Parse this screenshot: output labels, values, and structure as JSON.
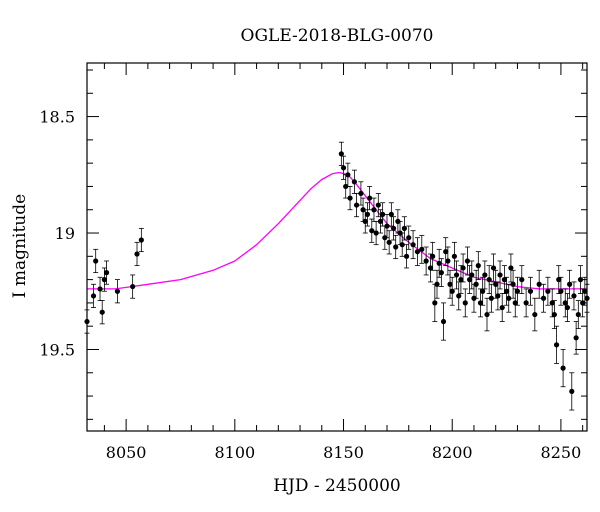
{
  "chart_data": {
    "type": "scatter",
    "title": "OGLE-2018-BLG-0070",
    "xlabel": "HJD - 2450000",
    "ylabel": "I magnitude",
    "xlim": [
      8032,
      8262
    ],
    "ylim": [
      19.85,
      18.27
    ],
    "y_inverted": true,
    "x_ticks": [
      8050,
      8100,
      8150,
      8200,
      8250
    ],
    "x_tick_labels": [
      "8050",
      "8100",
      "8150",
      "8200",
      "8250"
    ],
    "y_ticks": [
      18.5,
      19,
      19.5
    ],
    "y_tick_labels": [
      "18.5",
      "19",
      "19.5"
    ],
    "grid": false,
    "colors": {
      "points": "#000000",
      "model": "#ff00ff",
      "axes": "#000000"
    },
    "model": {
      "name": "",
      "x": [
        8032,
        8045,
        8060,
        8075,
        8090,
        8100,
        8110,
        8120,
        8130,
        8135,
        8140,
        8145,
        8148,
        8152,
        8155,
        8160,
        8165,
        8170,
        8180,
        8190,
        8200,
        8210,
        8220,
        8230,
        8240,
        8250,
        8262
      ],
      "y": [
        19.24,
        19.24,
        19.22,
        19.2,
        19.16,
        19.12,
        19.05,
        18.96,
        18.86,
        18.81,
        18.77,
        18.745,
        18.74,
        18.75,
        18.78,
        18.84,
        18.9,
        18.96,
        19.04,
        19.11,
        19.15,
        19.19,
        19.21,
        19.23,
        19.24,
        19.24,
        19.24
      ]
    },
    "series": [
      {
        "name": "",
        "x": [
          8032,
          8035,
          8036,
          8038,
          8039,
          8040,
          8041,
          8046,
          8053,
          8055,
          8057,
          8149,
          8150,
          8151,
          8152,
          8153,
          8155,
          8156,
          8158,
          8159,
          8160,
          8161,
          8162,
          8163,
          8164,
          8165,
          8166,
          8167,
          8168,
          8169,
          8170,
          8171,
          8172,
          8173,
          8174,
          8175,
          8176,
          8177,
          8178,
          8179,
          8180,
          8182,
          8184,
          8186,
          8188,
          8190,
          8191,
          8192,
          8193,
          8194,
          8195,
          8196,
          8197,
          8198,
          8199,
          8200,
          8201,
          8202,
          8203,
          8204,
          8205,
          8206,
          8207,
          8208,
          8209,
          8210,
          8211,
          8212,
          8213,
          8214,
          8215,
          8216,
          8217,
          8218,
          8219,
          8220,
          8221,
          8222,
          8223,
          8224,
          8225,
          8226,
          8227,
          8228,
          8229,
          8230,
          8232,
          8234,
          8236,
          8238,
          8240,
          8242,
          8244,
          8246,
          8247,
          8248,
          8249,
          8250,
          8251,
          8252,
          8253,
          8254,
          8255,
          8256,
          8257,
          8258,
          8259,
          8260,
          8261,
          8262
        ],
        "y": [
          19.38,
          19.27,
          19.12,
          19.24,
          19.34,
          19.2,
          19.17,
          19.25,
          19.23,
          19.09,
          19.03,
          18.66,
          18.72,
          18.8,
          18.75,
          18.85,
          18.78,
          18.88,
          18.83,
          18.9,
          18.95,
          18.92,
          18.85,
          18.99,
          18.9,
          19.0,
          18.88,
          18.95,
          18.92,
          19.02,
          18.97,
          19.04,
          18.92,
          18.98,
          19.06,
          18.95,
          19.0,
          19.05,
          18.98,
          19.1,
          19.02,
          19.05,
          19.08,
          19.07,
          19.12,
          19.15,
          19.1,
          19.3,
          19.22,
          19.13,
          19.17,
          19.38,
          19.08,
          19.12,
          19.22,
          19.25,
          19.1,
          19.18,
          19.27,
          19.2,
          19.15,
          19.3,
          19.12,
          19.2,
          19.18,
          19.28,
          19.22,
          19.14,
          19.3,
          19.25,
          19.18,
          19.35,
          19.2,
          19.28,
          19.15,
          19.22,
          19.27,
          19.18,
          19.32,
          19.2,
          19.25,
          19.28,
          19.15,
          19.22,
          19.3,
          19.25,
          19.2,
          19.3,
          19.25,
          19.35,
          19.22,
          19.28,
          19.25,
          19.3,
          19.35,
          19.48,
          19.2,
          19.25,
          19.58,
          19.3,
          19.32,
          19.22,
          19.68,
          19.27,
          19.45,
          19.35,
          19.2,
          19.3,
          19.25,
          19.28
        ],
        "yerr": [
          0.05,
          0.05,
          0.05,
          0.05,
          0.05,
          0.05,
          0.05,
          0.05,
          0.05,
          0.05,
          0.05,
          0.05,
          0.05,
          0.05,
          0.05,
          0.05,
          0.05,
          0.05,
          0.05,
          0.05,
          0.05,
          0.05,
          0.05,
          0.05,
          0.05,
          0.05,
          0.05,
          0.05,
          0.05,
          0.05,
          0.05,
          0.05,
          0.05,
          0.05,
          0.05,
          0.05,
          0.05,
          0.05,
          0.05,
          0.05,
          0.05,
          0.06,
          0.06,
          0.06,
          0.06,
          0.06,
          0.06,
          0.08,
          0.06,
          0.06,
          0.06,
          0.08,
          0.06,
          0.06,
          0.06,
          0.06,
          0.06,
          0.06,
          0.06,
          0.06,
          0.06,
          0.06,
          0.06,
          0.06,
          0.06,
          0.06,
          0.06,
          0.06,
          0.06,
          0.06,
          0.06,
          0.07,
          0.06,
          0.06,
          0.06,
          0.06,
          0.06,
          0.06,
          0.06,
          0.06,
          0.06,
          0.06,
          0.06,
          0.06,
          0.06,
          0.06,
          0.06,
          0.06,
          0.06,
          0.07,
          0.06,
          0.06,
          0.06,
          0.06,
          0.06,
          0.08,
          0.06,
          0.06,
          0.08,
          0.06,
          0.06,
          0.06,
          0.08,
          0.06,
          0.07,
          0.06,
          0.06,
          0.06,
          0.06,
          0.06
        ]
      }
    ]
  }
}
